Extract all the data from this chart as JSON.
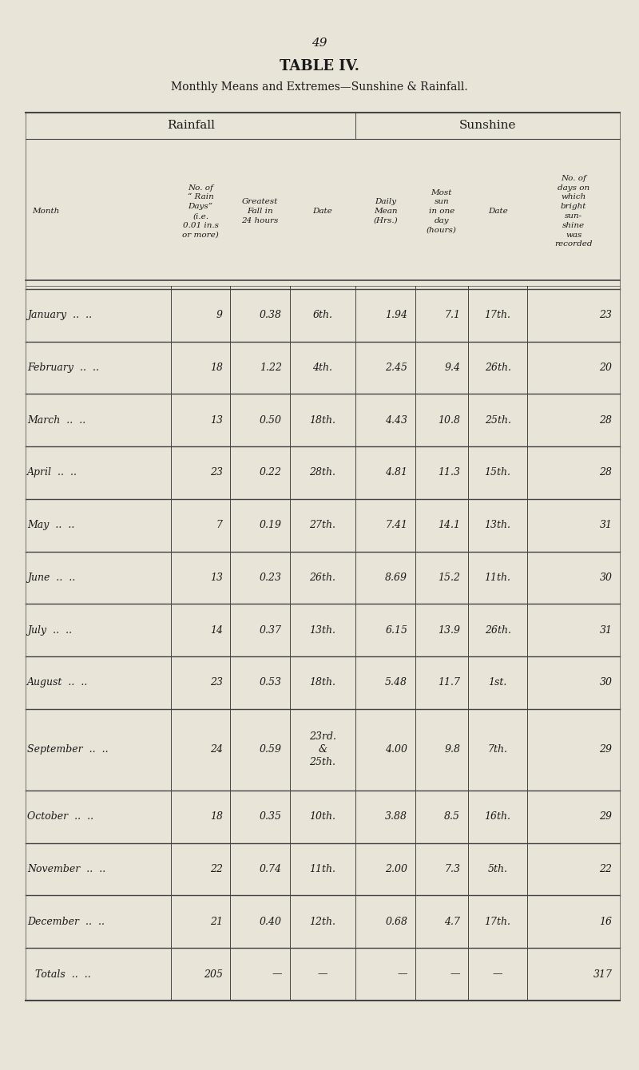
{
  "page_number": "49",
  "title": "TABLE IV.",
  "subtitle": "Monthly Means and Extremes—Sunshine & Rainfall.",
  "background_color": "#e8e4d8",
  "text_color": "#1a1a1a",
  "months": [
    "January",
    "February",
    "March",
    "April",
    "May",
    "June",
    "July",
    "August",
    "September",
    "October",
    "November",
    "December",
    "Totals"
  ],
  "rain_days": [
    "9",
    "18",
    "13",
    "23",
    "7",
    "13",
    "14",
    "23",
    "24",
    "18",
    "22",
    "21",
    "205"
  ],
  "greatest_fall": [
    "0.38",
    "1.22",
    "0.50",
    "0.22",
    "0.19",
    "0.23",
    "0.37",
    "0.53",
    "0.59",
    "0.35",
    "0.74",
    "0.40",
    "—"
  ],
  "date_rain": [
    "6th.",
    "4th.",
    "18th.",
    "28th.",
    "27th.",
    "26th.",
    "13th.",
    "18th.",
    "23rd.\n&\n25th.",
    "10th.",
    "11th.",
    "12th.",
    "—"
  ],
  "daily_mean": [
    "1.94",
    "2.45",
    "4.43",
    "4.81",
    "7.41",
    "8.69",
    "6.15",
    "5.48",
    "4.00",
    "3.88",
    "2.00",
    "0.68",
    "—"
  ],
  "most_sun": [
    "7.1",
    "9.4",
    "10.8",
    "11.3",
    "14.1",
    "15.2",
    "13.9",
    "11.7",
    "9.8",
    "8.5",
    "7.3",
    "4.7",
    "—"
  ],
  "date_sun": [
    "17th.",
    "26th.",
    "25th.",
    "15th.",
    "13th.",
    "11th.",
    "26th.",
    "1st.",
    "7th.",
    "16th.",
    "5th.",
    "17th.",
    "—"
  ],
  "days_sunshine": [
    "23",
    "20",
    "28",
    "28",
    "31",
    "30",
    "31",
    "30",
    "29",
    "29",
    "22",
    "16",
    "317"
  ],
  "col_header_month": "Month",
  "col_header_rain_days": "No. of\n“ Rain\nDays”\n(i.e.\n0.01 in.s\nor more)",
  "col_header_greatest_fall": "Greatest\nFall in\n24 hours",
  "col_header_date": "Date",
  "col_header_daily_mean": "Daily\nMean\n(Hrs.)",
  "col_header_most_sun": "Most\nsun\nin one\nday\n(hours)",
  "col_header_date2": "Date",
  "col_header_days_sunshine": "No. of\ndays on\nwhich\nbright\nsun-\nshine\nwas\nrecorded",
  "section_rainfall": "Rainfall",
  "section_sunshine": "Sunshine"
}
